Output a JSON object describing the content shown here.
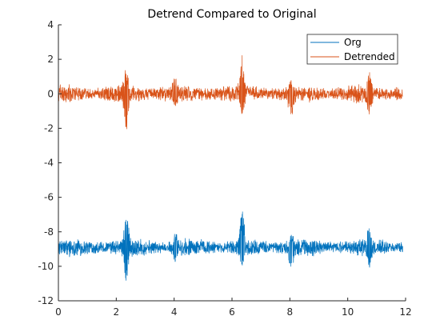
{
  "chart_data": {
    "type": "line",
    "title": "Detrend Compared to Original",
    "xlabel": "",
    "ylabel": "",
    "xlim": [
      0,
      12
    ],
    "ylim": [
      -12,
      4
    ],
    "x_ticks": [
      0,
      2,
      4,
      6,
      8,
      10,
      12
    ],
    "y_ticks": [
      4,
      2,
      0,
      -2,
      -4,
      -6,
      -8,
      -10,
      -12
    ],
    "x_tick_labels": [
      "0",
      "2",
      "4",
      "6",
      "8",
      "10",
      "12"
    ],
    "y_tick_labels": [
      "4",
      "2",
      "0",
      "-2",
      "-4",
      "-6",
      "-8",
      "-10",
      "-12"
    ],
    "grid": false,
    "legend_position": "top-right",
    "series": [
      {
        "name": "Org",
        "color": "#0072BD",
        "baseline": -8.9,
        "x_range": [
          0,
          11.9
        ],
        "typical_amplitude": 0.45,
        "bursts": [
          {
            "x": 2.35,
            "peak_high": -7.0,
            "peak_low": -10.9
          },
          {
            "x": 4.05,
            "peak_high": -7.9,
            "peak_low": -9.8
          },
          {
            "x": 6.35,
            "peak_high": -6.5,
            "peak_low": -10.0
          },
          {
            "x": 8.05,
            "peak_high": -8.0,
            "peak_low": -10.4
          },
          {
            "x": 10.75,
            "peak_high": -7.7,
            "peak_low": -10.1
          }
        ]
      },
      {
        "name": "Detrended",
        "color": "#D95319",
        "baseline": 0.0,
        "x_range": [
          0,
          11.9
        ],
        "typical_amplitude": 0.45,
        "bursts": [
          {
            "x": 2.35,
            "peak_high": 1.75,
            "peak_low": -2.1
          },
          {
            "x": 4.05,
            "peak_high": 1.2,
            "peak_low": -0.8
          },
          {
            "x": 6.35,
            "peak_high": 2.3,
            "peak_low": -1.3
          },
          {
            "x": 8.05,
            "peak_high": 0.8,
            "peak_low": -1.8
          },
          {
            "x": 10.75,
            "peak_high": 1.25,
            "peak_low": -1.3
          }
        ]
      }
    ]
  }
}
